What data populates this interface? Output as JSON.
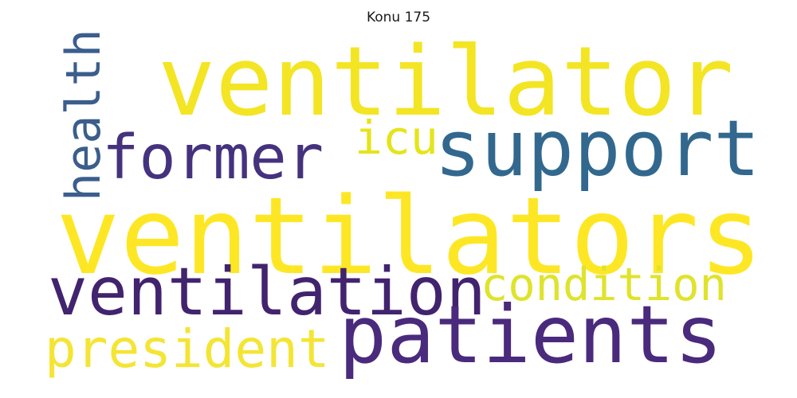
{
  "title": "Konu 175",
  "words": {
    "ventilator": {
      "text": "ventilator",
      "color": "#f3e523"
    },
    "ventilators": {
      "text": "ventilators",
      "color": "#fde725"
    },
    "support": {
      "text": "support",
      "color": "#32688e"
    },
    "former": {
      "text": "former",
      "color": "#45327e"
    },
    "icu": {
      "text": "icu",
      "color": "#e4e41a"
    },
    "health": {
      "text": "health",
      "color": "#3b5e8c"
    },
    "ventilation": {
      "text": "ventilation",
      "color": "#42236e"
    },
    "condition": {
      "text": "condition",
      "color": "#dfe32c"
    },
    "president": {
      "text": "president",
      "color": "#f4e535"
    },
    "patients": {
      "text": "patients",
      "color": "#4a2a7c"
    }
  }
}
